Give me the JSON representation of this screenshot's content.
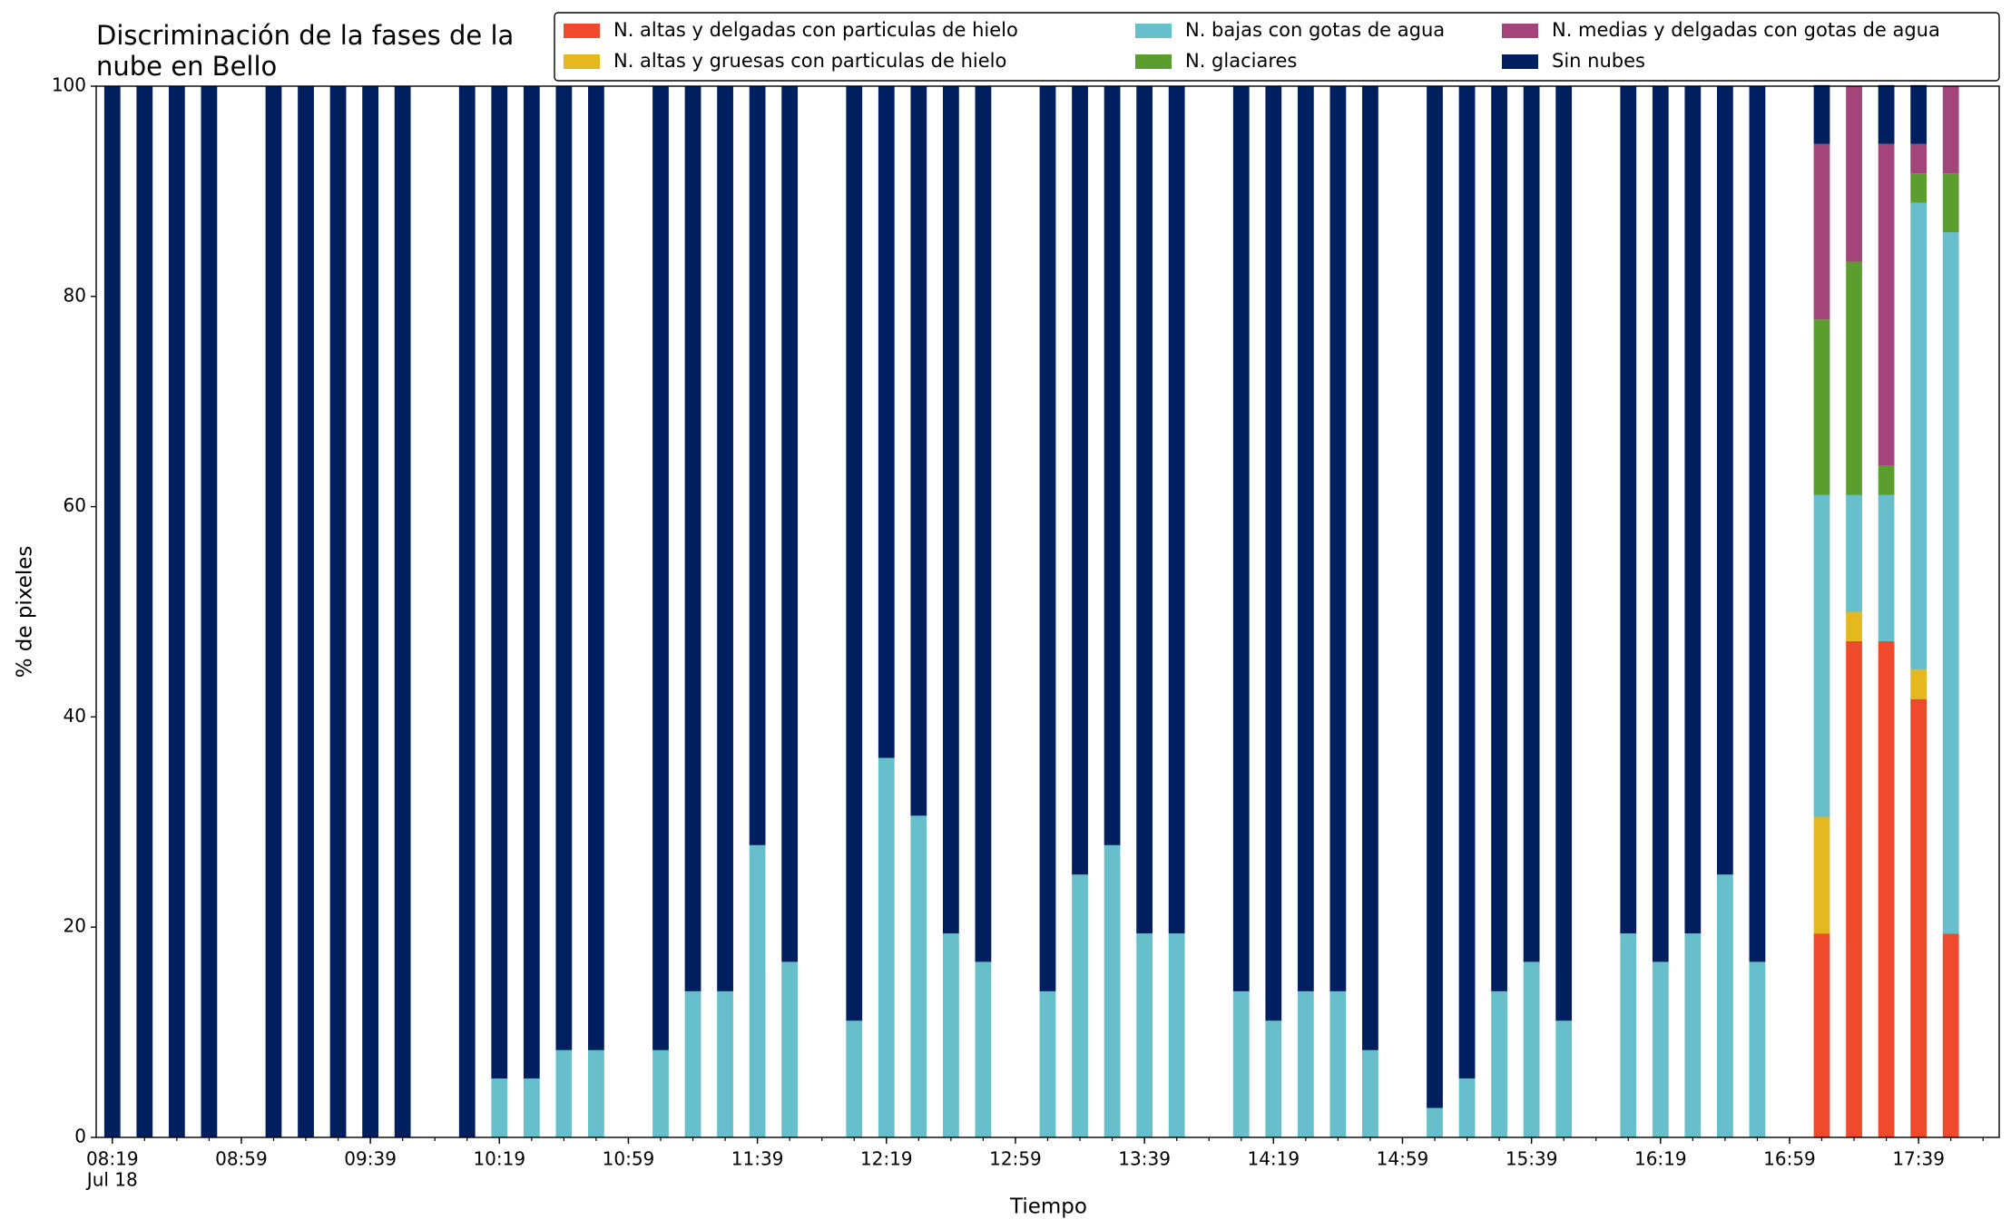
{
  "chart_data": {
    "type": "stacked_bar",
    "title": "Discriminación de la fases de la\nnube en Bello",
    "xlabel": "Tiempo",
    "ylabel": "% de pixeles",
    "x_date_label": "Jul 18",
    "x": [
      "08:19",
      "08:29",
      "08:39",
      "08:49",
      "09:09",
      "09:19",
      "09:29",
      "09:39",
      "09:49",
      "10:09",
      "10:19",
      "10:29",
      "10:39",
      "10:49",
      "11:09",
      "11:19",
      "11:29",
      "11:39",
      "11:49",
      "12:09",
      "12:19",
      "12:29",
      "12:39",
      "12:49",
      "13:09",
      "13:19",
      "13:29",
      "13:39",
      "13:49",
      "14:09",
      "14:19",
      "14:29",
      "14:39",
      "14:49",
      "15:09",
      "15:19",
      "15:29",
      "15:39",
      "15:49",
      "16:09",
      "16:19",
      "16:29",
      "16:39",
      "16:49",
      "17:09",
      "17:19",
      "17:29",
      "17:39",
      "17:49"
    ],
    "xlim": [
      "08:14",
      "18:04"
    ],
    "xticks": [
      "08:19",
      "08:59",
      "09:39",
      "10:19",
      "10:59",
      "11:39",
      "12:19",
      "12:59",
      "13:39",
      "14:19",
      "14:59",
      "15:39",
      "16:19",
      "16:59",
      "17:39"
    ],
    "ylim": [
      0,
      100
    ],
    "yticks": [
      0,
      20,
      40,
      60,
      80,
      100
    ],
    "legend": "upper right",
    "series": [
      {
        "name": "N. altas y delgadas con particulas de hielo",
        "color": "#ef4a2b",
        "values": [
          0,
          0,
          0,
          0,
          0,
          0,
          0,
          0,
          0,
          0,
          0,
          0,
          0,
          0,
          0,
          0,
          0,
          0,
          0,
          0,
          0,
          0,
          0,
          0,
          0,
          0,
          0,
          0,
          0,
          0,
          0,
          0,
          0,
          0,
          0,
          0,
          0,
          0,
          0,
          0,
          0,
          0,
          0,
          0,
          19.4,
          47.2,
          47.2,
          41.7,
          19.4
        ]
      },
      {
        "name": "N. altas y gruesas con particulas de hielo",
        "color": "#e6b820",
        "values": [
          0,
          0,
          0,
          0,
          0,
          0,
          0,
          0,
          0,
          0,
          0,
          0,
          0,
          0,
          0,
          0,
          0,
          0,
          0,
          0,
          0,
          0,
          0,
          0,
          0,
          0,
          0,
          0,
          0,
          0,
          0,
          0,
          0,
          0,
          0,
          0,
          0,
          0,
          0,
          0,
          0,
          0,
          0,
          0,
          11.1,
          2.8,
          0,
          2.8,
          0
        ]
      },
      {
        "name": "N. bajas con gotas de agua",
        "color": "#66bfca",
        "values": [
          0,
          0,
          0,
          0,
          0,
          0,
          0,
          0,
          0,
          0,
          5.6,
          5.6,
          8.3,
          8.3,
          8.3,
          13.9,
          13.9,
          27.8,
          16.7,
          11.1,
          36.1,
          30.6,
          19.4,
          16.7,
          13.9,
          25,
          27.8,
          19.4,
          19.4,
          13.9,
          11.1,
          13.9,
          13.9,
          8.3,
          2.8,
          5.6,
          13.9,
          16.7,
          11.1,
          19.4,
          16.7,
          19.4,
          25,
          16.7,
          30.6,
          11.1,
          13.9,
          44.4,
          66.7
        ]
      },
      {
        "name": "N. glaciares",
        "color": "#5c9e2e",
        "values": [
          0,
          0,
          0,
          0,
          0,
          0,
          0,
          0,
          0,
          0,
          0,
          0,
          0,
          0,
          0,
          0,
          0,
          0,
          0,
          0,
          0,
          0,
          0,
          0,
          0,
          0,
          0,
          0,
          0,
          0,
          0,
          0,
          0,
          0,
          0,
          0,
          0,
          0,
          0,
          0,
          0,
          0,
          0,
          0,
          16.7,
          22.2,
          2.8,
          2.8,
          5.6
        ]
      },
      {
        "name": "N. medias y delgadas con gotas de agua",
        "color": "#a3457b",
        "values": [
          0,
          0,
          0,
          0,
          0,
          0,
          0,
          0,
          0,
          0,
          0,
          0,
          0,
          0,
          0,
          0,
          0,
          0,
          0,
          0,
          0,
          0,
          0,
          0,
          0,
          0,
          0,
          0,
          0,
          0,
          0,
          0,
          0,
          0,
          0,
          0,
          0,
          0,
          0,
          0,
          0,
          0,
          0,
          0,
          16.7,
          16.7,
          30.6,
          2.8,
          8.3
        ]
      },
      {
        "name": "Sin nubes",
        "color": "#001f5e",
        "values": [
          100,
          100,
          100,
          100,
          100,
          100,
          100,
          100,
          100,
          100,
          94.4,
          94.4,
          91.7,
          91.7,
          91.7,
          86.1,
          86.1,
          72.2,
          83.3,
          88.9,
          63.9,
          69.4,
          80.6,
          83.3,
          86.1,
          75,
          72.2,
          80.6,
          80.6,
          86.1,
          88.9,
          86.1,
          86.1,
          91.7,
          97.2,
          94.4,
          86.1,
          83.3,
          88.9,
          80.6,
          83.3,
          80.6,
          75,
          83.3,
          5.6,
          0,
          5.6,
          5.6,
          0
        ]
      }
    ]
  }
}
